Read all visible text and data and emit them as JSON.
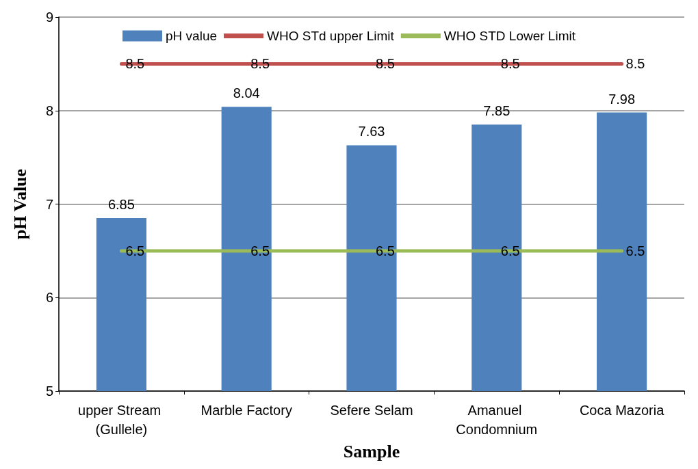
{
  "chart_data": {
    "type": "bar",
    "xlabel": "Sample",
    "ylabel": "pH Value",
    "categories": [
      "upper Stream (Gullele)",
      "Marble Factory",
      "Sefere Selam",
      "Amanuel Condomnium",
      "Coca Mazoria"
    ],
    "series": [
      {
        "name": "pH value",
        "color": "#4f81bd",
        "values": [
          6.85,
          8.04,
          7.63,
          7.85,
          7.98
        ]
      },
      {
        "name": "WHO STd upper Limit",
        "type": "line",
        "color": "#c0504d",
        "values": [
          8.5,
          8.5,
          8.5,
          8.5,
          8.5
        ]
      },
      {
        "name": "WHO STD Lower Limit",
        "type": "line",
        "color": "#9bbb59",
        "values": [
          6.5,
          6.5,
          6.5,
          6.5,
          6.5
        ]
      }
    ],
    "ylim": [
      5,
      9
    ],
    "yticks": [
      5,
      6,
      7,
      8,
      9
    ],
    "grid": "y",
    "legend": "top",
    "data_labels": true,
    "marker": "none"
  }
}
